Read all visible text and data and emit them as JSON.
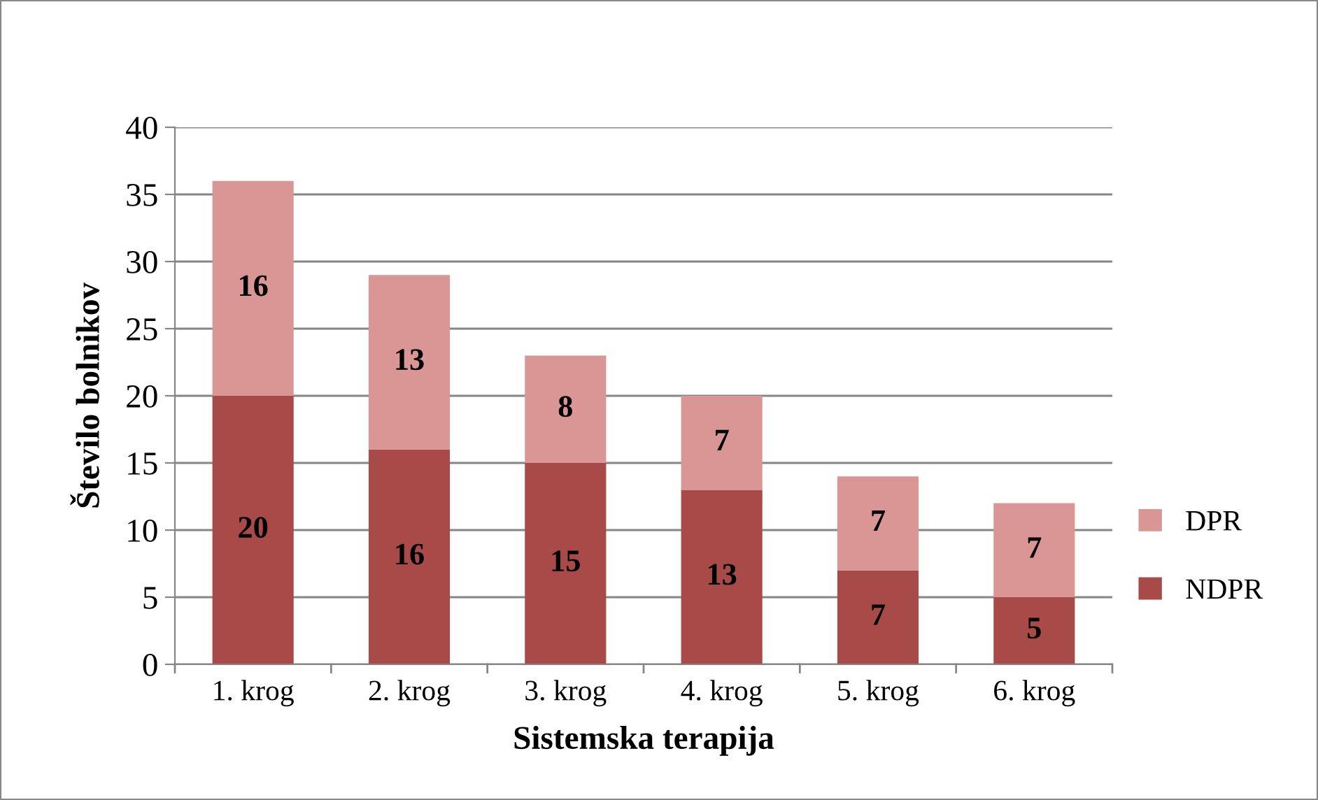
{
  "chart_data": {
    "type": "bar",
    "stacked": true,
    "xlabel": "Sistemska terapija",
    "ylabel": "Število bolnikov",
    "categories": [
      "1. krog",
      "2. krog",
      "3. krog",
      "4. krog",
      "5. krog",
      "6. krog"
    ],
    "series": [
      {
        "name": "NDPR",
        "color": "#a84a47",
        "values": [
          20,
          16,
          15,
          13,
          7,
          5
        ]
      },
      {
        "name": "DPR",
        "color": "#d99694",
        "values": [
          16,
          13,
          8,
          7,
          7,
          7
        ]
      }
    ],
    "ylim": [
      0,
      40
    ],
    "yticks": [
      0,
      5,
      10,
      15,
      20,
      25,
      30,
      35,
      40
    ],
    "grid": "y",
    "legend": "right",
    "data_labels": true
  }
}
